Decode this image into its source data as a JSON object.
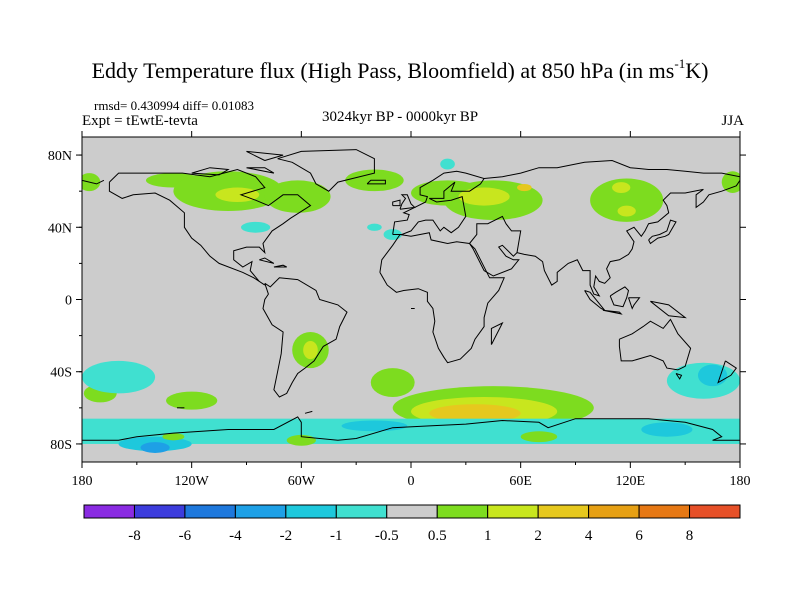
{
  "title": {
    "main": "Eddy Temperature flux (High Pass, Bloomfield) at 850 hPa (in ms",
    "sup": "-1",
    "tail": "K)"
  },
  "stats": "rmsd= 0.430994 diff= 0.01083",
  "expt": "Expt = tEwtE-tevta",
  "period": "3024kyr BP - 0000kyr BP",
  "season": "JJA",
  "map": {
    "projection": "cylindrical-equidistant",
    "lon_range": [
      -180,
      180
    ],
    "lat_range": [
      -90,
      90
    ],
    "background_color": "#cccccc",
    "y_ticks": [
      {
        "lat": 80,
        "label": "80N"
      },
      {
        "lat": 40,
        "label": "40N"
      },
      {
        "lat": 0,
        "label": "0"
      },
      {
        "lat": -40,
        "label": "40S"
      },
      {
        "lat": -80,
        "label": "80S"
      }
    ],
    "x_ticks": [
      {
        "lon": -180,
        "label": "180"
      },
      {
        "lon": -120,
        "label": "120W"
      },
      {
        "lon": -60,
        "label": "60W"
      },
      {
        "lon": 0,
        "label": "0"
      },
      {
        "lon": 60,
        "label": "60E"
      },
      {
        "lon": 120,
        "label": "120E"
      },
      {
        "lon": 180,
        "label": "180"
      }
    ]
  },
  "colorbar": {
    "colors": [
      "#8a2be2",
      "#3c3cdc",
      "#1e78dc",
      "#1ea0e6",
      "#1ec8dc",
      "#40e0d0",
      "#cccccc",
      "#7ddc1f",
      "#c8e61e",
      "#e6c81e",
      "#e6a014",
      "#e67814",
      "#e65028"
    ],
    "labels": [
      "-8",
      "-6",
      "-4",
      "-2",
      "-1",
      "-0.5",
      "0.5",
      "1",
      "2",
      "4",
      "6",
      "8"
    ]
  },
  "regions": [
    {
      "level": "1",
      "color": "#7ddc1f",
      "kind": "ellipse",
      "center": [
        -130,
        66
      ],
      "radii": [
        15,
        4
      ]
    },
    {
      "level": "1",
      "color": "#7ddc1f",
      "kind": "ellipse",
      "center": [
        -100,
        60
      ],
      "radii": [
        30,
        11
      ]
    },
    {
      "level": "1",
      "color": "#7ddc1f",
      "kind": "ellipse",
      "center": [
        -62,
        57
      ],
      "radii": [
        18,
        9
      ]
    },
    {
      "level": "1",
      "color": "#7ddc1f",
      "kind": "ellipse",
      "center": [
        -20,
        66
      ],
      "radii": [
        16,
        6
      ]
    },
    {
      "level": "1",
      "color": "#7ddc1f",
      "kind": "ellipse",
      "center": [
        20,
        59
      ],
      "radii": [
        20,
        7
      ]
    },
    {
      "level": "1",
      "color": "#7ddc1f",
      "kind": "ellipse",
      "center": [
        45,
        55
      ],
      "radii": [
        27,
        11
      ]
    },
    {
      "level": "1",
      "color": "#7ddc1f",
      "kind": "ellipse",
      "center": [
        118,
        55
      ],
      "radii": [
        20,
        12
      ]
    },
    {
      "level": "1",
      "color": "#7ddc1f",
      "kind": "ellipse",
      "center": [
        -176,
        65
      ],
      "radii": [
        6,
        5
      ]
    },
    {
      "level": "1",
      "color": "#7ddc1f",
      "kind": "ellipse",
      "center": [
        176,
        65
      ],
      "radii": [
        6,
        6
      ]
    },
    {
      "level": "2",
      "color": "#c8e61e",
      "kind": "ellipse",
      "center": [
        -95,
        58
      ],
      "radii": [
        12,
        4
      ]
    },
    {
      "level": "2",
      "color": "#c8e61e",
      "kind": "ellipse",
      "center": [
        40,
        57
      ],
      "radii": [
        14,
        5
      ]
    },
    {
      "level": "2",
      "color": "#c8e61e",
      "kind": "ellipse",
      "center": [
        115,
        62
      ],
      "radii": [
        5,
        3
      ]
    },
    {
      "level": "2",
      "color": "#c8e61e",
      "kind": "ellipse",
      "center": [
        118,
        49
      ],
      "radii": [
        5,
        3
      ]
    },
    {
      "level": "4",
      "color": "#e6c81e",
      "kind": "ellipse",
      "center": [
        62,
        62
      ],
      "radii": [
        4,
        2
      ]
    },
    {
      "level": "-0.5",
      "color": "#40e0d0",
      "kind": "ellipse",
      "center": [
        -85,
        40
      ],
      "radii": [
        8,
        3
      ]
    },
    {
      "level": "-0.5",
      "color": "#40e0d0",
      "kind": "ellipse",
      "center": [
        -10,
        36
      ],
      "radii": [
        5,
        3
      ]
    },
    {
      "level": "-0.5",
      "color": "#40e0d0",
      "kind": "ellipse",
      "center": [
        20,
        75
      ],
      "radii": [
        4,
        3
      ]
    },
    {
      "level": "-0.5",
      "color": "#40e0d0",
      "kind": "ellipse",
      "center": [
        -20,
        40
      ],
      "radii": [
        4,
        2
      ]
    },
    {
      "level": "1",
      "color": "#7ddc1f",
      "kind": "ellipse",
      "center": [
        -55,
        -28
      ],
      "radii": [
        10,
        10
      ]
    },
    {
      "level": "2",
      "color": "#c8e61e",
      "kind": "ellipse",
      "center": [
        -55,
        -28
      ],
      "radii": [
        4,
        5
      ]
    },
    {
      "level": "1",
      "color": "#7ddc1f",
      "kind": "ellipse",
      "center": [
        -10,
        -46
      ],
      "radii": [
        12,
        8
      ]
    },
    {
      "level": "1",
      "color": "#7ddc1f",
      "kind": "ellipse",
      "center": [
        -120,
        -56
      ],
      "radii": [
        14,
        5
      ]
    },
    {
      "level": "1",
      "color": "#7ddc1f",
      "kind": "ellipse",
      "center": [
        -170,
        -52
      ],
      "radii": [
        9,
        5
      ]
    },
    {
      "level": "1",
      "color": "#7ddc1f",
      "kind": "ellipse",
      "center": [
        45,
        -60
      ],
      "radii": [
        55,
        12
      ]
    },
    {
      "level": "2",
      "color": "#c8e61e",
      "kind": "ellipse",
      "center": [
        40,
        -62
      ],
      "radii": [
        40,
        8
      ]
    },
    {
      "level": "4",
      "color": "#e6c81e",
      "kind": "ellipse",
      "center": [
        35,
        -63
      ],
      "radii": [
        25,
        5
      ]
    },
    {
      "level": "-0.5",
      "color": "#40e0d0",
      "kind": "ellipse",
      "center": [
        -160,
        -43
      ],
      "radii": [
        20,
        9
      ]
    },
    {
      "level": "-0.5",
      "color": "#40e0d0",
      "kind": "ellipse",
      "center": [
        160,
        -45
      ],
      "radii": [
        20,
        10
      ]
    },
    {
      "level": "-1",
      "color": "#1ec8dc",
      "kind": "ellipse",
      "center": [
        165,
        -42
      ],
      "radii": [
        8,
        6
      ]
    },
    {
      "level": "-0.5",
      "color": "#40e0d0",
      "kind": "band",
      "lat_range": [
        -80,
        -66
      ]
    },
    {
      "level": "1",
      "color": "#7ddc1f",
      "kind": "ellipse",
      "center": [
        -60,
        -78
      ],
      "radii": [
        8,
        3
      ]
    },
    {
      "level": "1",
      "color": "#7ddc1f",
      "kind": "ellipse",
      "center": [
        70,
        -76
      ],
      "radii": [
        10,
        3
      ]
    },
    {
      "level": "-1",
      "color": "#1ec8dc",
      "kind": "ellipse",
      "center": [
        -140,
        -80
      ],
      "radii": [
        20,
        4
      ]
    },
    {
      "level": "-1",
      "color": "#1ec8dc",
      "kind": "ellipse",
      "center": [
        -20,
        -70
      ],
      "radii": [
        18,
        3
      ]
    },
    {
      "level": "-2",
      "color": "#1ea0e6",
      "kind": "ellipse",
      "center": [
        -140,
        -82
      ],
      "radii": [
        8,
        3
      ]
    },
    {
      "level": "-1",
      "color": "#1ec8dc",
      "kind": "ellipse",
      "center": [
        140,
        -72
      ],
      "radii": [
        14,
        4
      ]
    },
    {
      "level": "1",
      "color": "#7ddc1f",
      "kind": "ellipse",
      "center": [
        -130,
        -76
      ],
      "radii": [
        6,
        2
      ]
    }
  ]
}
